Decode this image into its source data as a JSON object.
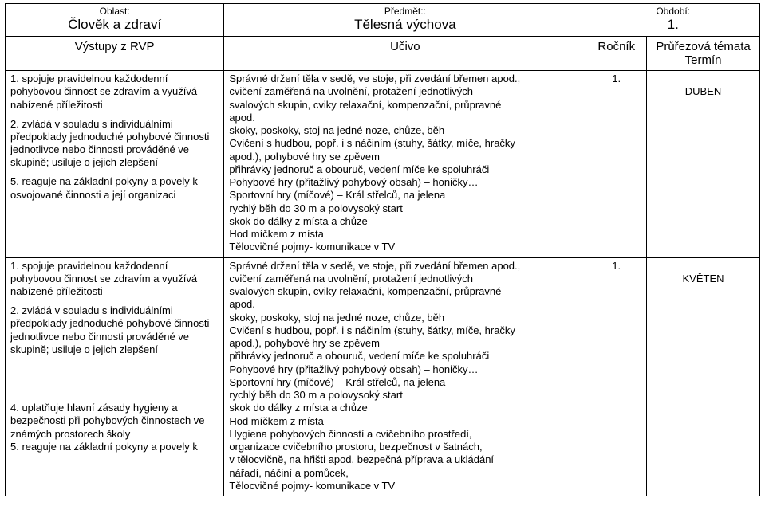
{
  "meta": {
    "oblast_label": "Oblast:",
    "oblast_value": "Člověk a zdraví",
    "predmet_label": "Předmět::",
    "predmet_value": "Tělesná výchova",
    "obdobi_label": "Období:",
    "obdobi_value": "1."
  },
  "cols": {
    "vystupy": "Výstupy z RVP",
    "ucivo": "Učivo",
    "rocnik": "Ročník",
    "prurez_line1": "Průřezová témata",
    "prurez_line2": "Termín"
  },
  "row1": {
    "vystupy_p1": "1. spojuje pravidelnou každodenní pohybovou činnost se zdravím a využívá nabízené příležitosti",
    "vystupy_p2": "2. zvládá v souladu s individuálními předpoklady jednoduché pohybové činnosti jednotlivce nebo činnosti prováděné ve skupině; usiluje o jejich zlepšení",
    "vystupy_p3": "5. reaguje na základní pokyny a povely k osvojované činnosti a její organizaci",
    "ucivo_l1": "Správné držení těla v sedě, ve stoje, při zvedání břemen apod.,",
    "ucivo_l2": "cvičení zaměřená na uvolnění, protažení jednotlivých",
    "ucivo_l3": "svalových skupin, cviky relaxační, kompenzační, průpravné",
    "ucivo_l4": "apod.",
    "ucivo_l5": "skoky, poskoky, stoj na jedné noze, chůze, běh",
    "ucivo_l6": "Cvičení s hudbou, popř. i s náčiním (stuhy, šátky, míče, hračky",
    "ucivo_l7": "apod.), pohybové hry se zpěvem",
    "ucivo_l8": "přihrávky jednoruč a obouruč, vedení míče ke spoluhráči",
    "ucivo_l9": "Pohybové hry (přitažlivý pohybový obsah) – honičky…",
    "ucivo_l10": "Sportovní hry (míčové) – Král střelců, na jelena",
    "ucivo_l11": "rychlý běh do 30 m a polovysoký start",
    "ucivo_l12": "skok do dálky z místa a chůze",
    "ucivo_l13": "Hod míčkem z místa",
    "ucivo_l14": "Tělocvičné pojmy- komunikace v TV",
    "rocnik": "1.",
    "prurez": "DUBEN"
  },
  "row2": {
    "vystupy_p1": "1. spojuje pravidelnou každodenní pohybovou činnost se zdravím a využívá nabízené příležitosti",
    "vystupy_p2": "2. zvládá v souladu s individuálními předpoklady jednoduché pohybové činnosti jednotlivce nebo činnosti prováděné ve skupině; usiluje o jejich zlepšení",
    "vystupy_p3": "4. uplatňuje hlavní zásady hygieny a bezpečnosti při pohybových činnostech ve známých prostorech školy",
    "vystupy_p4": "5. reaguje na základní pokyny a povely k",
    "ucivo_l1": "Správné držení těla v sedě, ve stoje, při zvedání břemen apod.,",
    "ucivo_l2": "cvičení zaměřená na uvolnění, protažení jednotlivých",
    "ucivo_l3": "svalových skupin, cviky relaxační, kompenzační, průpravné",
    "ucivo_l4": "apod.",
    "ucivo_l5": "skoky, poskoky, stoj na jedné noze, chůze, běh",
    "ucivo_l6": "Cvičení s hudbou, popř. i s náčiním (stuhy, šátky, míče, hračky",
    "ucivo_l7": "apod.), pohybové hry se zpěvem",
    "ucivo_l8": "přihrávky jednoruč a obouruč, vedení míče ke spoluhráči",
    "ucivo_l9": "Pohybové hry (přitažlivý pohybový obsah) – honičky…",
    "ucivo_l10": "Sportovní hry (míčové) – Král střelců, na jelena",
    "ucivo_l11": "rychlý běh do 30 m a polovysoký start",
    "ucivo_l12": "skok do dálky z místa a chůze",
    "ucivo_l13": "Hod míčkem z místa",
    "ucivo_l14": "Hygiena pohybových činností a cvičebního prostředí,",
    "ucivo_l15": "organizace cvičebního prostoru, bezpečnost v šatnách,",
    "ucivo_l16": "v tělocvičně, na hřišti apod. bezpečná příprava a ukládání",
    "ucivo_l17": "nářadí, náčiní a pomůcek,",
    "ucivo_l18": "Tělocvičné pojmy- komunikace v TV",
    "rocnik": "1.",
    "prurez": "KVĚTEN"
  }
}
